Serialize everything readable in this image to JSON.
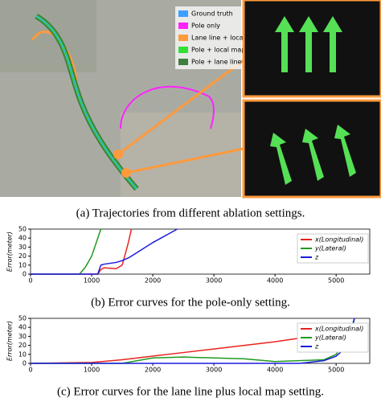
{
  "map": {
    "legend": [
      {
        "label": "Ground truth",
        "color": "#3aa0ff"
      },
      {
        "label": "Pole only",
        "color": "#ff22ff"
      },
      {
        "label": "Lane line + local map",
        "color": "#ff9a3c"
      },
      {
        "label": "Pole + local map",
        "color": "#33e033"
      },
      {
        "label": "Pole + lane line",
        "color": "#3f7f3f"
      }
    ]
  },
  "captions": [
    "(a) Trajectories from different ablation settings.",
    "(b) Error curves for the pole-only setting.",
    "(c) Error curves for the lane line plus local map setting."
  ],
  "chart_data": [
    {
      "type": "line",
      "ylabel": "Error(meter)",
      "xlim": [
        0,
        5550
      ],
      "ylim": [
        0,
        50
      ],
      "xticks": [
        0,
        1000,
        2000,
        3000,
        4000,
        5000
      ],
      "yticks": [
        0,
        10,
        20,
        30,
        40,
        50
      ],
      "legend": "upper right",
      "x": [
        0,
        800,
        900,
        1000,
        1100,
        1150,
        1200,
        1400,
        1500,
        1600,
        1650,
        2000,
        2400
      ],
      "series": [
        {
          "name": "x(Longitudinal)",
          "color": "#e8231f",
          "values": [
            0,
            0,
            0,
            0,
            0,
            5,
            7,
            6,
            10,
            35,
            50,
            null,
            null
          ]
        },
        {
          "name": "y(Lateral)",
          "color": "#1f9a1f",
          "values": [
            0,
            0,
            8,
            20,
            40,
            50,
            null,
            null,
            null,
            null,
            null,
            null,
            null
          ]
        },
        {
          "name": "z",
          "color": "#1a1ae0",
          "values": [
            0,
            0,
            0,
            0,
            0,
            10,
            11,
            13,
            15,
            18,
            20,
            35,
            50
          ]
        }
      ]
    },
    {
      "type": "line",
      "ylabel": "Error(meter)",
      "xlim": [
        0,
        5550
      ],
      "ylim": [
        0,
        50
      ],
      "xticks": [
        0,
        1000,
        2000,
        3000,
        4000,
        5000
      ],
      "yticks": [
        0,
        10,
        20,
        30,
        40,
        50
      ],
      "legend": "upper right",
      "x": [
        0,
        1000,
        1500,
        2000,
        2500,
        3000,
        3500,
        4000,
        4400,
        4800,
        5000,
        5200,
        5300,
        5400,
        5500
      ],
      "series": [
        {
          "name": "x(Longitudinal)",
          "color": "#e8231f",
          "values": [
            0,
            1,
            4,
            8,
            12,
            16,
            20,
            24,
            28,
            30,
            32,
            30,
            29,
            28,
            33
          ]
        },
        {
          "name": "y(Lateral)",
          "color": "#1f9a1f",
          "values": [
            0,
            0,
            0,
            6,
            7,
            6,
            5,
            2,
            3,
            4,
            10,
            30,
            50,
            null,
            null
          ]
        },
        {
          "name": "z",
          "color": "#1a1ae0",
          "values": [
            0,
            0,
            0,
            0,
            0,
            0,
            0,
            0,
            0,
            3,
            8,
            20,
            50,
            null,
            null
          ]
        }
      ]
    }
  ]
}
